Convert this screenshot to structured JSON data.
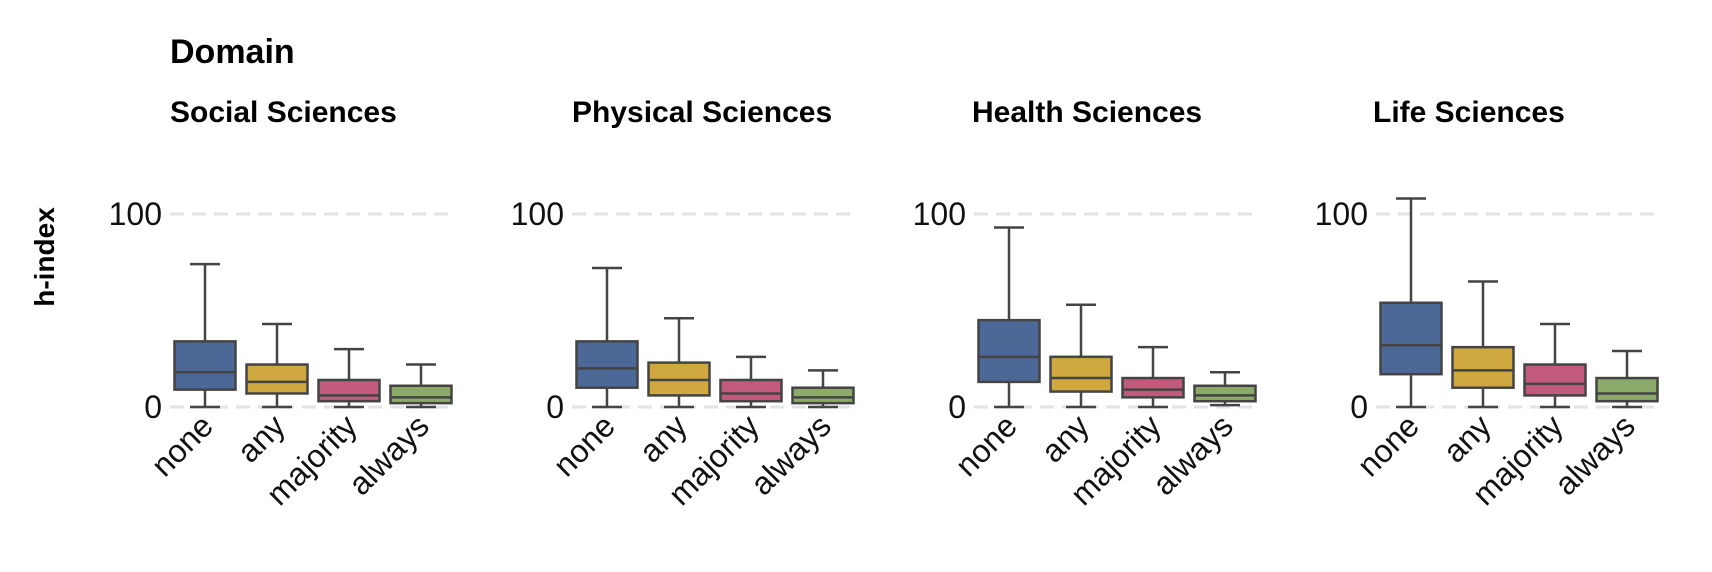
{
  "chart_data": {
    "type": "boxplot",
    "title": "Domain",
    "ylabel": "h-index",
    "ylim": [
      0,
      110
    ],
    "yticks": [
      0,
      100
    ],
    "grid": "horizontal dashed at y ticks",
    "categories": [
      "none",
      "any",
      "majority",
      "always"
    ],
    "colors": {
      "none": "#4c6897",
      "any": "#cfa83f",
      "majority": "#c25a7c",
      "always": "#8cab6a"
    },
    "panels": [
      {
        "name": "Social Sciences",
        "boxes": [
          {
            "category": "none",
            "low": 0,
            "q1": 9,
            "median": 18,
            "q3": 34,
            "high": 74
          },
          {
            "category": "any",
            "low": 0,
            "q1": 7,
            "median": 13,
            "q3": 22,
            "high": 43
          },
          {
            "category": "majority",
            "low": 0,
            "q1": 3,
            "median": 6,
            "q3": 14,
            "high": 30
          },
          {
            "category": "always",
            "low": 0,
            "q1": 2,
            "median": 5,
            "q3": 11,
            "high": 22
          }
        ]
      },
      {
        "name": "Physical Sciences",
        "boxes": [
          {
            "category": "none",
            "low": 0,
            "q1": 10,
            "median": 20,
            "q3": 34,
            "high": 72
          },
          {
            "category": "any",
            "low": 0,
            "q1": 6,
            "median": 14,
            "q3": 23,
            "high": 46
          },
          {
            "category": "majority",
            "low": 0,
            "q1": 3,
            "median": 7,
            "q3": 14,
            "high": 26
          },
          {
            "category": "always",
            "low": 0,
            "q1": 2,
            "median": 5,
            "q3": 10,
            "high": 19
          }
        ]
      },
      {
        "name": "Health Sciences",
        "boxes": [
          {
            "category": "none",
            "low": 0,
            "q1": 13,
            "median": 26,
            "q3": 45,
            "high": 93
          },
          {
            "category": "any",
            "low": 0,
            "q1": 8,
            "median": 15,
            "q3": 26,
            "high": 53
          },
          {
            "category": "majority",
            "low": 0,
            "q1": 5,
            "median": 9,
            "q3": 15,
            "high": 31
          },
          {
            "category": "always",
            "low": 1,
            "q1": 3,
            "median": 6,
            "q3": 11,
            "high": 18
          }
        ]
      },
      {
        "name": "Life Sciences",
        "boxes": [
          {
            "category": "none",
            "low": 0,
            "q1": 17,
            "median": 32,
            "q3": 54,
            "high": 108
          },
          {
            "category": "any",
            "low": 0,
            "q1": 10,
            "median": 19,
            "q3": 31,
            "high": 65
          },
          {
            "category": "majority",
            "low": 0,
            "q1": 6,
            "median": 12,
            "q3": 22,
            "high": 43
          },
          {
            "category": "always",
            "low": 0,
            "q1": 3,
            "median": 7,
            "q3": 15,
            "high": 29
          }
        ]
      }
    ]
  }
}
